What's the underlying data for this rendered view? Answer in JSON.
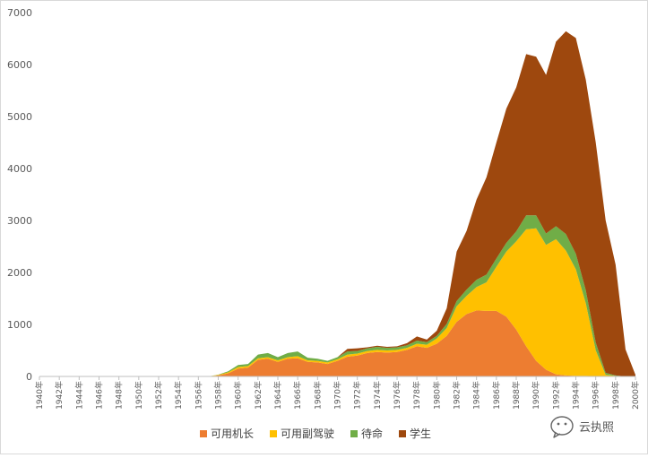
{
  "chart_data": {
    "type": "area",
    "stacked": true,
    "x": [
      1940,
      1941,
      1942,
      1943,
      1944,
      1945,
      1946,
      1947,
      1948,
      1949,
      1950,
      1951,
      1952,
      1953,
      1954,
      1955,
      1956,
      1957,
      1958,
      1959,
      1960,
      1961,
      1962,
      1963,
      1964,
      1965,
      1966,
      1967,
      1968,
      1969,
      1970,
      1971,
      1972,
      1973,
      1974,
      1975,
      1976,
      1977,
      1978,
      1979,
      1980,
      1981,
      1982,
      1983,
      1984,
      1985,
      1986,
      1987,
      1988,
      1989,
      1990,
      1991,
      1992,
      1993,
      1994,
      1995,
      1996,
      1997,
      1998,
      1999,
      2000
    ],
    "xtick_labels": [
      "1940年",
      "1942年",
      "1944年",
      "1946年",
      "1948年",
      "1950年",
      "1952年",
      "1954年",
      "1956年",
      "1958年",
      "1960年",
      "1962年",
      "1964年",
      "1966年",
      "1968年",
      "1970年",
      "1972年",
      "1974年",
      "1976年",
      "1978年",
      "1980年",
      "1982年",
      "1984年",
      "1986年",
      "1988年",
      "1990年",
      "1992年",
      "1994年",
      "1996年",
      "1998年",
      "2000年"
    ],
    "ytick_labels": [
      "0",
      "1000",
      "2000",
      "3000",
      "4000",
      "5000",
      "6000",
      "7000"
    ],
    "ylim": [
      0,
      7000
    ],
    "grid": false,
    "legend_position": "bottom",
    "series": [
      {
        "name": "可用机长",
        "color": "#ED7D31",
        "values": [
          0,
          0,
          0,
          0,
          0,
          0,
          0,
          0,
          0,
          0,
          0,
          0,
          0,
          0,
          0,
          0,
          0,
          0,
          20,
          60,
          150,
          170,
          320,
          340,
          280,
          340,
          350,
          280,
          270,
          240,
          300,
          380,
          400,
          450,
          470,
          460,
          470,
          510,
          580,
          550,
          630,
          780,
          1050,
          1200,
          1270,
          1260,
          1260,
          1150,
          900,
          580,
          300,
          130,
          40,
          20,
          10,
          10,
          5,
          0,
          0,
          0,
          0
        ]
      },
      {
        "name": "可用副驾驶",
        "color": "#FFC000",
        "values": [
          0,
          0,
          0,
          0,
          0,
          0,
          0,
          0,
          0,
          0,
          0,
          0,
          0,
          0,
          0,
          0,
          0,
          0,
          10,
          20,
          30,
          30,
          30,
          30,
          30,
          30,
          40,
          30,
          30,
          30,
          30,
          40,
          40,
          40,
          40,
          40,
          40,
          40,
          50,
          60,
          100,
          150,
          300,
          350,
          450,
          550,
          850,
          1250,
          1700,
          2250,
          2550,
          2400,
          2600,
          2400,
          2050,
          1400,
          500,
          30,
          10,
          0,
          0
        ]
      },
      {
        "name": "待命",
        "color": "#70AD47",
        "values": [
          0,
          0,
          0,
          0,
          0,
          0,
          0,
          0,
          0,
          0,
          0,
          0,
          0,
          0,
          0,
          0,
          0,
          0,
          5,
          20,
          40,
          40,
          70,
          80,
          60,
          80,
          90,
          50,
          40,
          30,
          40,
          60,
          50,
          50,
          60,
          50,
          50,
          50,
          60,
          50,
          50,
          80,
          100,
          120,
          140,
          150,
          160,
          170,
          190,
          270,
          250,
          220,
          250,
          320,
          300,
          250,
          150,
          40,
          10,
          0,
          0
        ]
      },
      {
        "name": "学生",
        "color": "#9E480E",
        "values": [
          0,
          0,
          0,
          0,
          0,
          0,
          0,
          0,
          0,
          0,
          0,
          0,
          0,
          0,
          0,
          0,
          0,
          0,
          0,
          0,
          0,
          0,
          0,
          0,
          0,
          0,
          0,
          0,
          0,
          0,
          0,
          50,
          50,
          20,
          20,
          20,
          20,
          40,
          80,
          50,
          100,
          300,
          950,
          1130,
          1540,
          1870,
          2230,
          2580,
          2770,
          3100,
          3050,
          3050,
          3550,
          3900,
          4150,
          4050,
          3850,
          2930,
          2130,
          520,
          30
        ]
      }
    ]
  },
  "watermark": {
    "icon": "wechat-icon",
    "text": "云执照"
  }
}
